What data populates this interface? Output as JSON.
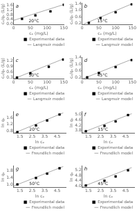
{
  "chart_data": [
    {
      "type": "scatter",
      "annotations": [
        "a",
        "20°C"
      ],
      "xlabel": "cₑ (mg/L)",
      "ylabel": "cₑ/qₑ (L/g)",
      "xlim": [
        0,
        150
      ],
      "ylim": [
        -0.05,
        1.75
      ],
      "xticks": [
        0,
        50,
        100,
        150
      ],
      "yticks": [
        {
          "value": 0,
          "label": "0.0"
        },
        0.4,
        0.8,
        1.2,
        1.6
      ],
      "grid": false,
      "legend": "bottom",
      "series": [
        {
          "name": "Experimental data",
          "type": "scatter",
          "color": "black",
          "marker": "square",
          "x": [
            25,
            65,
            110,
            150
          ],
          "values": [
            0.44,
            0.73,
            1.07,
            1.62
          ]
        },
        {
          "name": "Langmuir model",
          "type": "line",
          "color": "#aaaaaa",
          "line_style": "solid",
          "x": [
            0,
            150
          ],
          "values": [
            0.32,
            1.64
          ]
        }
      ]
    },
    {
      "type": "scatter",
      "annotations": [
        "b",
        "15°C"
      ],
      "xlabel": "cₑ (mg/L)",
      "ylabel": "cₑ/qₑ (L/g)",
      "xlim": [
        0,
        150
      ],
      "ylim": [
        0.1,
        1.45
      ],
      "xticks": [
        0,
        50,
        100,
        150
      ],
      "yticks": [
        0.2,
        0.6,
        {
          "value": 1.0,
          "label": "1.0"
        },
        1.4
      ],
      "grid": false,
      "legend": "bottom",
      "series": [
        {
          "name": "Experimental data",
          "type": "scatter",
          "color": "black",
          "marker": "square",
          "x": [
            20,
            55,
            100,
            148
          ],
          "values": [
            0.22,
            0.52,
            0.88,
            1.38
          ]
        },
        {
          "name": "Langmuir model",
          "type": "line",
          "color": "#aaaaaa",
          "line_style": "solid",
          "x": [
            0,
            150
          ],
          "values": [
            0.1,
            1.42
          ]
        }
      ]
    },
    {
      "type": "scatter",
      "annotations": [
        "c",
        "50°C"
      ],
      "xlabel": "cₑ (mg/L)",
      "ylabel": "cₑ/qₑ (L/g)",
      "xlim": [
        0,
        150
      ],
      "ylim": [
        0.2,
        1.4
      ],
      "xticks": [
        0,
        50,
        100,
        150
      ],
      "yticks": [
        0.3,
        0.6,
        0.9,
        1.2
      ],
      "grid": false,
      "legend": "bottom",
      "series": [
        {
          "name": "Experimental data",
          "type": "scatter",
          "color": "black",
          "marker": "square",
          "x": [
            10,
            50,
            105,
            148
          ],
          "values": [
            0.28,
            0.52,
            0.88,
            1.28
          ]
        },
        {
          "name": "Langmuir model",
          "type": "line",
          "color": "#aaaaaa",
          "line_style": "solid",
          "x": [
            0,
            150
          ],
          "values": [
            0.21,
            1.33
          ]
        }
      ]
    },
    {
      "type": "scatter",
      "annotations": [
        "d",
        "45°C"
      ],
      "xlabel": "cₑ (mg/L)",
      "ylabel": "cₑ/qₑ (L/g)",
      "xlim": [
        0,
        150
      ],
      "ylim": [
        0.1,
        1.4
      ],
      "xticks": [
        0,
        50,
        100,
        150
      ],
      "yticks": [
        0.2,
        0.6,
        {
          "value": 1.0,
          "label": "1.0"
        },
        1.4
      ],
      "grid": false,
      "legend": "bottom",
      "series": [
        {
          "name": "Experimental data",
          "type": "scatter",
          "color": "black",
          "marker": "square",
          "x": [
            15,
            50,
            100,
            148
          ],
          "values": [
            0.2,
            0.46,
            0.82,
            1.24
          ]
        },
        {
          "name": "Langmuir model",
          "type": "line",
          "color": "#aaaaaa",
          "line_style": "solid",
          "x": [
            0,
            150
          ],
          "values": [
            0.1,
            1.3
          ]
        }
      ]
    },
    {
      "type": "scatter",
      "annotations": [
        "e",
        "20°C"
      ],
      "xlabel": "ln cₑ",
      "ylabel": "ln qₑ",
      "xlim": [
        1.0,
        5.2
      ],
      "ylim": [
        0.65,
        1.95
      ],
      "xticks": [
        1.5,
        2.5,
        3.5,
        4.5
      ],
      "yticks": [
        0.8,
        1.2,
        1.6
      ],
      "grid": false,
      "legend": "bottom",
      "series": [
        {
          "name": "Experimental data",
          "type": "scatter",
          "color": "black",
          "marker": "square",
          "x": [
            1.3,
            2.8,
            3.7,
            4.7
          ],
          "values": [
            0.72,
            1.12,
            1.42,
            1.78
          ]
        },
        {
          "name": "Freundlich model",
          "type": "line",
          "color": "#aaaaaa",
          "line_style": "solid",
          "x": [
            1.0,
            5.0
          ],
          "values": [
            0.65,
            1.88
          ]
        }
      ]
    },
    {
      "type": "scatter",
      "annotations": [
        "f",
        "15°C"
      ],
      "xlabel": "ln cₑ",
      "ylabel": "ln qₑ",
      "xlim": [
        1.0,
        5.2
      ],
      "ylim": [
        3.6,
        5.2
      ],
      "xticks": [
        1.5,
        2.5,
        3.5,
        4.5
      ],
      "yticks": [
        3.8,
        4.2,
        4.6,
        {
          "value": 5.0,
          "label": "5.0"
        }
      ],
      "grid": false,
      "legend": "bottom",
      "series": [
        {
          "name": "Experimental data",
          "type": "scatter",
          "color": "black",
          "marker": "square",
          "x": [
            1.3,
            2.8,
            3.7,
            4.7
          ],
          "values": [
            3.75,
            4.15,
            4.48,
            4.95
          ]
        },
        {
          "name": "Freundlich model",
          "type": "line",
          "color": "#aaaaaa",
          "line_style": "solid",
          "x": [
            1.0,
            5.0
          ],
          "values": [
            3.65,
            5.05
          ]
        }
      ]
    },
    {
      "type": "scatter",
      "annotations": [
        "g",
        "50°C"
      ],
      "xlabel": "ln cₑ",
      "ylabel": "ln qₑ",
      "xlim": [
        1.0,
        5.2
      ],
      "ylim": [
        0.85,
        2.05
      ],
      "xticks": [
        1.5,
        2.5,
        3.5,
        4.5
      ],
      "yticks": [
        {
          "value": 1.0,
          "label": "1.0"
        },
        1.4,
        1.8
      ],
      "grid": false,
      "legend": "bottom",
      "series": [
        {
          "name": "Experimental data",
          "type": "scatter",
          "color": "black",
          "marker": "square",
          "x": [
            1.3,
            2.8,
            3.7,
            4.7
          ],
          "values": [
            1.02,
            1.38,
            1.62,
            1.92
          ]
        },
        {
          "name": "Freundlich model",
          "type": "line",
          "color": "#aaaaaa",
          "line_style": "solid",
          "x": [
            1.0,
            5.0
          ],
          "values": [
            0.93,
            2.02
          ]
        }
      ]
    },
    {
      "type": "scatter",
      "annotations": [
        "h",
        "45°C"
      ],
      "xlabel": "ln cₑ",
      "ylabel": "ln qₑ",
      "xlim": [
        1.0,
        5.2
      ],
      "ylim": [
        3.9,
        5.5
      ],
      "xticks": [
        1.5,
        2.5,
        3.5,
        4.5
      ],
      "yticks": [
        {
          "value": 4.0,
          "label": "4.0"
        },
        4.4,
        4.8,
        5.2
      ],
      "grid": false,
      "legend": "bottom",
      "series": [
        {
          "name": "Experimental data",
          "type": "scatter",
          "color": "black",
          "marker": "square",
          "x": [
            1.3,
            2.8,
            3.7,
            4.7
          ],
          "values": [
            4.05,
            4.4,
            4.72,
            5.18
          ]
        },
        {
          "name": "Freundlich model",
          "type": "line",
          "color": "#aaaaaa",
          "line_style": "solid",
          "x": [
            1.0,
            5.0
          ],
          "values": [
            3.95,
            5.38
          ]
        }
      ]
    }
  ]
}
